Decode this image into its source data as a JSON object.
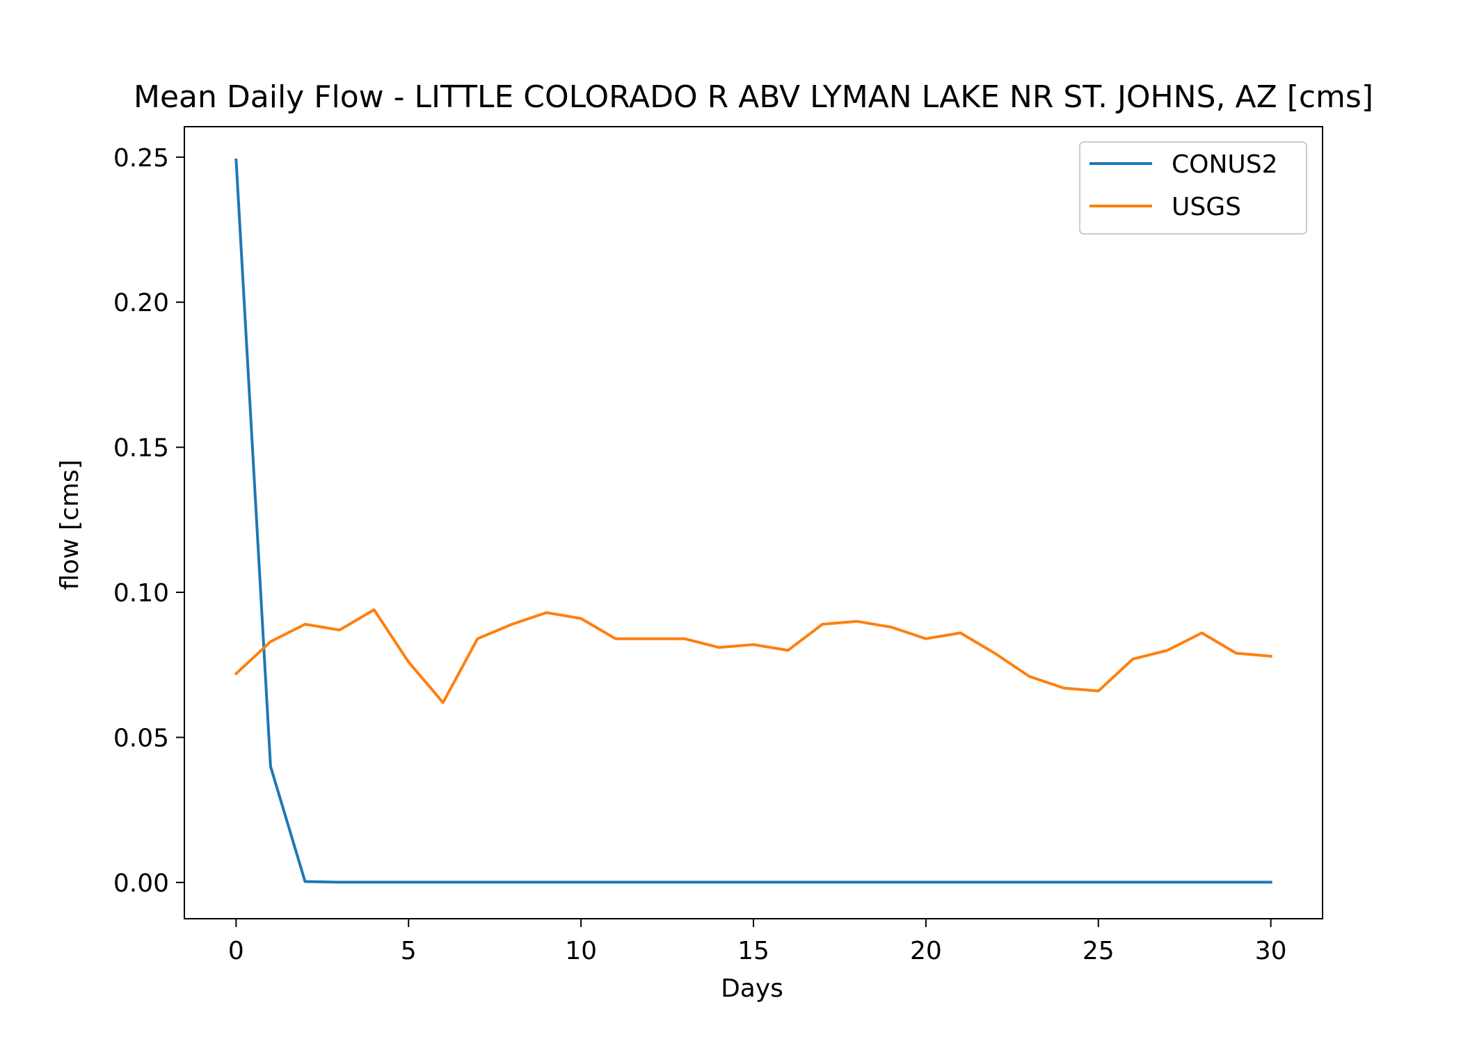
{
  "colors": {
    "conus2": "#1f77b4",
    "usgs": "#ff7f0e",
    "axis": "#000000",
    "legend_border": "#cccccc"
  },
  "chart_data": {
    "type": "line",
    "title": "Mean Daily Flow - LITTLE COLORADO R ABV LYMAN LAKE NR ST. JOHNS, AZ [cms]",
    "xlabel": "Days",
    "ylabel": "flow [cms]",
    "xlim": [
      -1.5,
      31.5
    ],
    "ylim": [
      -0.0125,
      0.2605
    ],
    "xticks": [
      0,
      5,
      10,
      15,
      20,
      25,
      30
    ],
    "xtick_labels": [
      "0",
      "5",
      "10",
      "15",
      "20",
      "25",
      "30"
    ],
    "yticks": [
      0.0,
      0.05,
      0.1,
      0.15,
      0.2,
      0.25
    ],
    "ytick_labels": [
      "0.00",
      "0.05",
      "0.10",
      "0.15",
      "0.20",
      "0.25"
    ],
    "grid": false,
    "legend_position": "top-right",
    "x": [
      0,
      1,
      2,
      3,
      4,
      5,
      6,
      7,
      8,
      9,
      10,
      11,
      12,
      13,
      14,
      15,
      16,
      17,
      18,
      19,
      20,
      21,
      22,
      23,
      24,
      25,
      26,
      27,
      28,
      29,
      30
    ],
    "series": [
      {
        "name": "CONUS2",
        "color": "#1f77b4",
        "values": [
          0.249,
          0.04,
          0.0003,
          0.0001,
          0.0001,
          0.0001,
          0.0001,
          0.0001,
          0.0001,
          0.0001,
          0.0001,
          0.0001,
          0.0001,
          0.0001,
          0.0001,
          0.0001,
          0.0001,
          0.0001,
          0.0001,
          0.0001,
          0.0001,
          0.0001,
          0.0001,
          0.0001,
          0.0001,
          0.0001,
          0.0001,
          0.0001,
          0.0001,
          0.0001,
          0.0001
        ]
      },
      {
        "name": "USGS",
        "color": "#ff7f0e",
        "values": [
          0.072,
          0.083,
          0.089,
          0.087,
          0.094,
          0.076,
          0.062,
          0.084,
          0.089,
          0.093,
          0.091,
          0.084,
          0.084,
          0.084,
          0.081,
          0.082,
          0.08,
          0.089,
          0.09,
          0.088,
          0.084,
          0.086,
          0.079,
          0.071,
          0.067,
          0.066,
          0.077,
          0.08,
          0.086,
          0.079,
          0.078
        ]
      }
    ]
  }
}
